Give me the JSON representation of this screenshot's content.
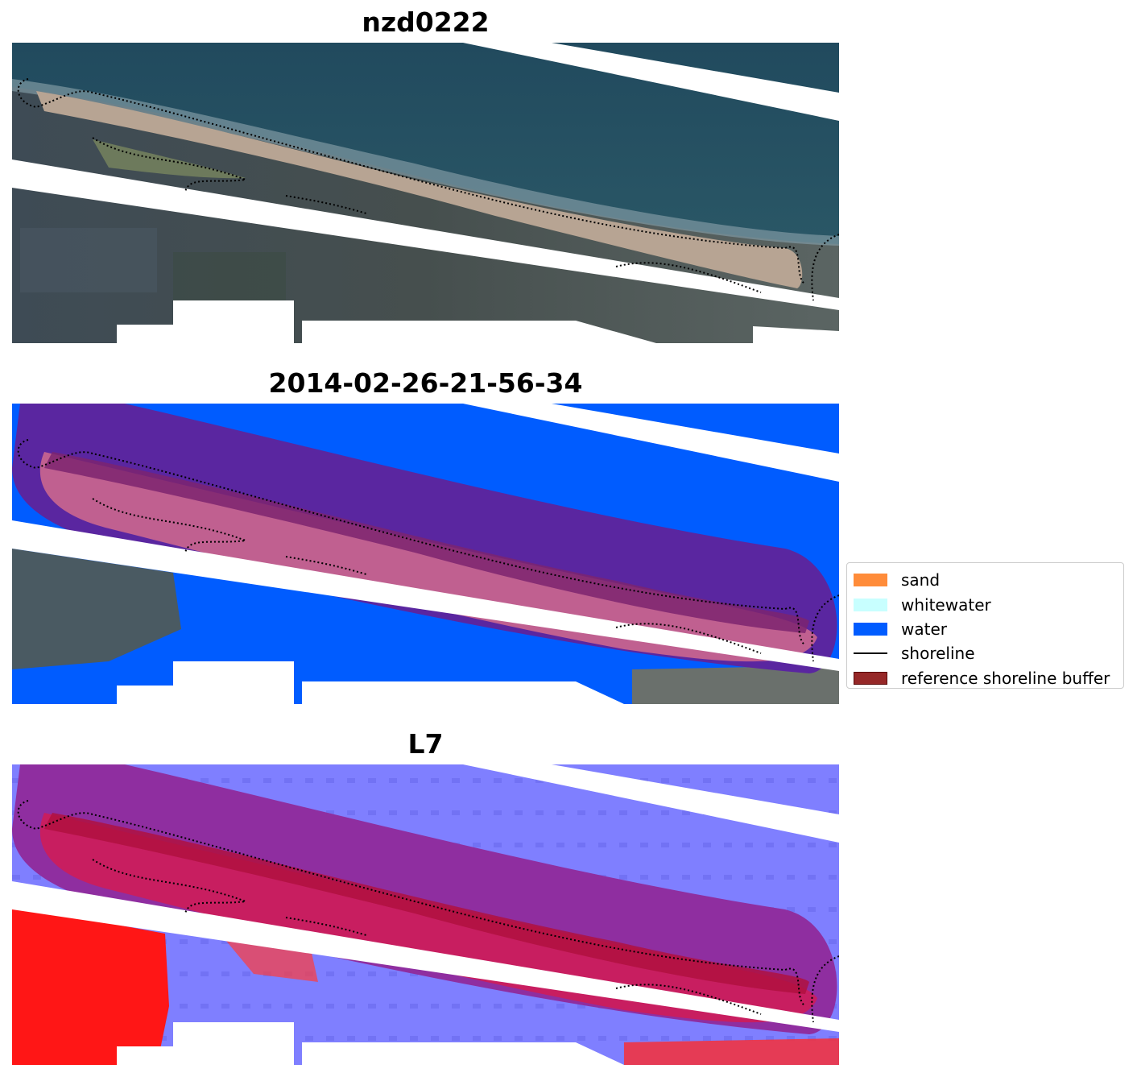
{
  "panels": [
    {
      "title": "nzd0222",
      "view": "RGB"
    },
    {
      "title": "2014-02-26-21-56-34",
      "view": "classification"
    },
    {
      "title": "L7",
      "view": "MNDWI"
    }
  ],
  "legend": {
    "items": [
      {
        "label": "sand",
        "kind": "patch",
        "color": "#ff8c3a"
      },
      {
        "label": "whitewater",
        "kind": "patch",
        "color": "#c8ffff"
      },
      {
        "label": "water",
        "kind": "patch",
        "color": "#005cff"
      },
      {
        "label": "shoreline",
        "kind": "line",
        "color": "#000000"
      },
      {
        "label": "reference shoreline buffer",
        "kind": "patch",
        "color": "#962828",
        "edge": "#5a0a0a"
      }
    ]
  },
  "colors": {
    "ocean": "#244e60",
    "land": "#3b4a52",
    "sand_beach": "#b4a08f",
    "buffer_overlay": "#c01880",
    "class_water": "#005cff",
    "class_sand": "#ff8c3a",
    "index_positive": "#ff0000",
    "index_negative": "#7f7fff",
    "nodata": "#ffffff"
  }
}
